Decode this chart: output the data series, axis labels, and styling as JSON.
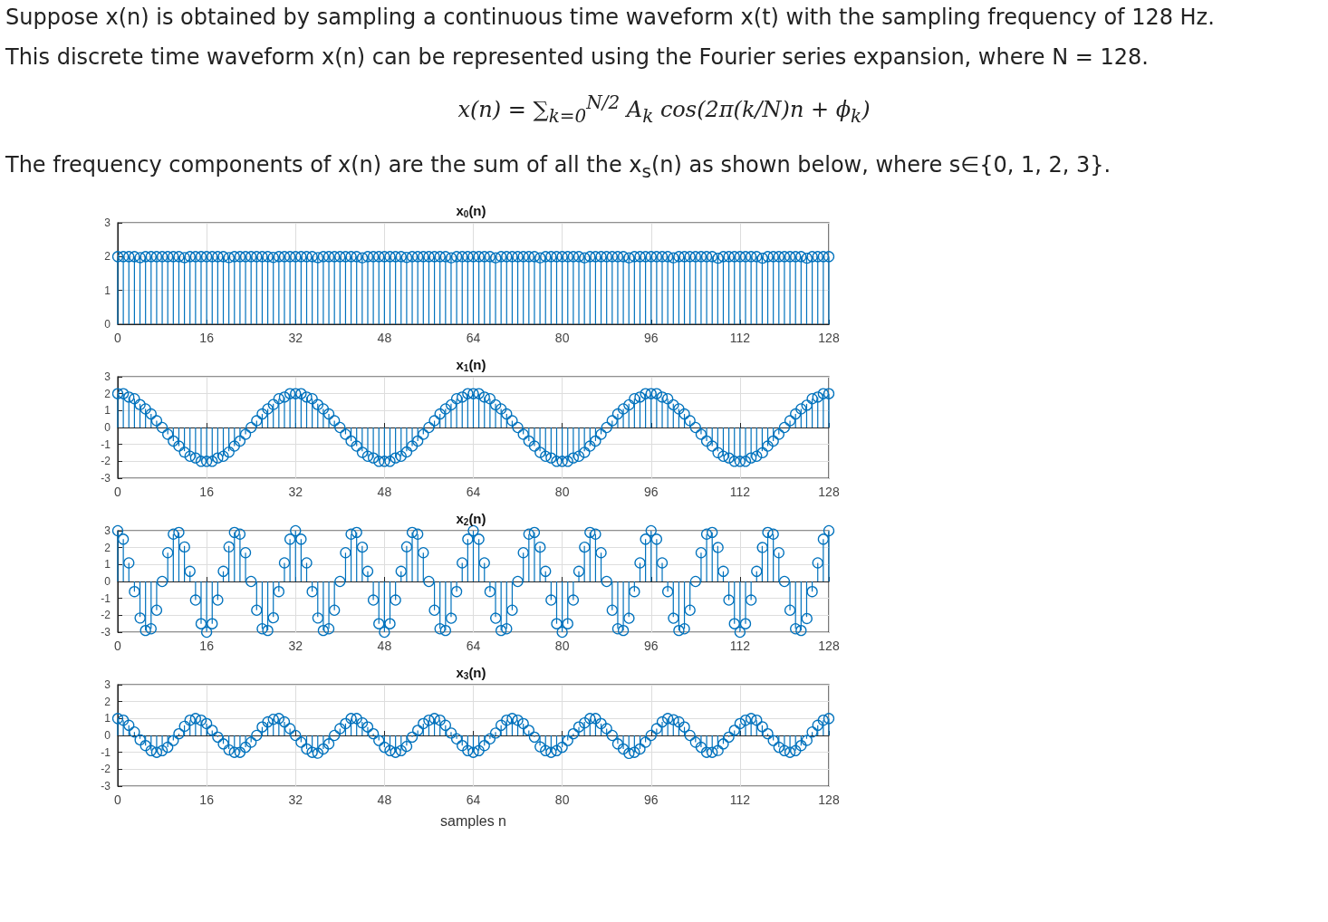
{
  "chart_data": [
    {
      "type": "lollipop",
      "title": "x$_{0}$(n)",
      "annotations": [
        "Suppose x(n) is obtained by sampling a continuous time waveform x(t) with the sampling frequency of 128 Hz.",
        "This discrete time waveform x(n) can be represented using the Fourier series expansion, where N = 128.",
        "x(n) = ∑$_{k=0}$$^{N/2}$ A$_{k}$ cos(2π(k/N)n + ϕ$_{k}$)",
        "The frequency components of x(n) are the sum of all the x$_{s}$(n) as shown below, where s∈{0, 1, 2, 3}."
      ],
      "color": "#0072bd",
      "marker": "circle",
      "grid": true,
      "xlim": [
        0,
        128
      ],
      "xticks": [
        0,
        16,
        32,
        48,
        64,
        80,
        96,
        112,
        128
      ],
      "ylim": [
        0,
        3
      ],
      "yticks": [
        0,
        1,
        2,
        3
      ],
      "x": [
        0,
        1,
        2,
        3,
        4,
        5,
        6,
        7,
        8,
        9,
        10,
        11,
        12,
        13,
        14,
        15,
        16,
        17,
        18,
        19,
        20,
        21,
        22,
        23,
        24,
        25,
        26,
        27,
        28,
        29,
        30,
        31,
        32,
        33,
        34,
        35,
        36,
        37,
        38,
        39,
        40,
        41,
        42,
        43,
        44,
        45,
        46,
        47,
        48,
        49,
        50,
        51,
        52,
        53,
        54,
        55,
        56,
        57,
        58,
        59,
        60,
        61,
        62,
        63,
        64,
        65,
        66,
        67,
        68,
        69,
        70,
        71,
        72,
        73,
        74,
        75,
        76,
        77,
        78,
        79,
        80,
        81,
        82,
        83,
        84,
        85,
        86,
        87,
        88,
        89,
        90,
        91,
        92,
        93,
        94,
        95,
        96,
        97,
        98,
        99,
        100,
        101,
        102,
        103,
        104,
        105,
        106,
        107,
        108,
        109,
        110,
        111,
        112,
        113,
        114,
        115,
        116,
        117,
        118,
        119,
        120,
        121,
        122,
        123,
        124,
        125,
        126,
        127,
        128
      ],
      "values": [
        2,
        2,
        2,
        2,
        2,
        2,
        2,
        2,
        2,
        2,
        2,
        2,
        2,
        2,
        2,
        2,
        2,
        2,
        2,
        2,
        2,
        2,
        2,
        2,
        2,
        2,
        2,
        2,
        2,
        2,
        2,
        2,
        2,
        2,
        2,
        2,
        2,
        2,
        2,
        2,
        2,
        2,
        2,
        2,
        2,
        2,
        2,
        2,
        2,
        2,
        2,
        2,
        2,
        2,
        2,
        2,
        2,
        2,
        2,
        2,
        2,
        2,
        2,
        2,
        2,
        2,
        2,
        2,
        2,
        2,
        2,
        2,
        2,
        2,
        2,
        2,
        2,
        2,
        2,
        2,
        2,
        2,
        2,
        2,
        2,
        2,
        2,
        2,
        2,
        2,
        2,
        2,
        2,
        2,
        2,
        2,
        2,
        2,
        2,
        2,
        2,
        2,
        2,
        2,
        2,
        2,
        2,
        2,
        2,
        2,
        2,
        2,
        2,
        2,
        2,
        2,
        2,
        2,
        2,
        2,
        2,
        2,
        2,
        2,
        2,
        2,
        2,
        2,
        2
      ]
    },
    {
      "type": "lollipop",
      "title": "x$_{1}$(n)",
      "color": "#0072bd",
      "marker": "circle",
      "grid": true,
      "xlim": [
        0,
        128
      ],
      "xticks": [
        0,
        16,
        32,
        48,
        64,
        80,
        96,
        112,
        128
      ],
      "ylim": [
        -3,
        3
      ],
      "yticks": [
        -3,
        -2,
        -1,
        0,
        1,
        2,
        3
      ],
      "x": [
        0,
        1,
        2,
        3,
        4,
        5,
        6,
        7,
        8,
        9,
        10,
        11,
        12,
        13,
        14,
        15,
        16,
        17,
        18,
        19,
        20,
        21,
        22,
        23,
        24,
        25,
        26,
        27,
        28,
        29,
        30,
        31,
        32,
        33,
        34,
        35,
        36,
        37,
        38,
        39,
        40,
        41,
        42,
        43,
        44,
        45,
        46,
        47,
        48,
        49,
        50,
        51,
        52,
        53,
        54,
        55,
        56,
        57,
        58,
        59,
        60,
        61,
        62,
        63,
        64,
        65,
        66,
        67,
        68,
        69,
        70,
        71,
        72,
        73,
        74,
        75,
        76,
        77,
        78,
        79,
        80,
        81,
        82,
        83,
        84,
        85,
        86,
        87,
        88,
        89,
        90,
        91,
        92,
        93,
        94,
        95,
        96,
        97,
        98,
        99,
        100,
        101,
        102,
        103,
        104,
        105,
        106,
        107,
        108,
        109,
        110,
        111,
        112,
        113,
        114,
        115,
        116,
        117,
        118,
        119,
        120,
        121,
        122,
        123,
        124,
        125,
        126,
        127,
        128
      ],
      "values": [
        2,
        2,
        1.8,
        1.7,
        1.4,
        1.1,
        0.8,
        0.4,
        0,
        -0.4,
        -0.8,
        -1.1,
        -1.4,
        -1.7,
        -1.8,
        -2,
        -2,
        -2,
        -1.8,
        -1.7,
        -1.4,
        -1.1,
        -0.8,
        -0.4,
        0,
        0.4,
        0.8,
        1.1,
        1.4,
        1.7,
        1.8,
        2,
        2,
        2,
        1.8,
        1.7,
        1.4,
        1.1,
        0.8,
        0.4,
        0,
        -0.4,
        -0.8,
        -1.1,
        -1.4,
        -1.7,
        -1.8,
        -2,
        -2,
        -2,
        -1.8,
        -1.7,
        -1.4,
        -1.1,
        -0.8,
        -0.4,
        0,
        0.4,
        0.8,
        1.1,
        1.4,
        1.7,
        1.8,
        2,
        2,
        2,
        1.8,
        1.7,
        1.4,
        1.1,
        0.8,
        0.4,
        0,
        -0.4,
        -0.8,
        -1.1,
        -1.4,
        -1.7,
        -1.8,
        -2,
        -2,
        -2,
        -1.8,
        -1.7,
        -1.4,
        -1.1,
        -0.8,
        -0.4,
        0,
        0.4,
        0.8,
        1.1,
        1.4,
        1.7,
        1.8,
        2,
        2,
        2,
        1.8,
        1.7,
        1.4,
        1.1,
        0.8,
        0.4,
        0,
        -0.4,
        -0.8,
        -1.1,
        -1.4,
        -1.7,
        -1.8,
        -2,
        -2,
        -2,
        -1.8,
        -1.7,
        -1.4,
        -1.1,
        -0.8,
        -0.4,
        0,
        0.4,
        0.8,
        1.1,
        1.4,
        1.7,
        1.8,
        2,
        2
      ]
    },
    {
      "type": "lollipop",
      "title": "x$_{2}$(n)",
      "color": "#0072bd",
      "marker": "circle",
      "grid": true,
      "xlim": [
        0,
        128
      ],
      "xticks": [
        0,
        16,
        32,
        48,
        64,
        80,
        96,
        112,
        128
      ],
      "ylim": [
        -3,
        3
      ],
      "yticks": [
        -3,
        -2,
        -1,
        0,
        1,
        2,
        3
      ],
      "x": [
        0,
        1,
        2,
        3,
        4,
        5,
        6,
        7,
        8,
        9,
        10,
        11,
        12,
        13,
        14,
        15,
        16,
        17,
        18,
        19,
        20,
        21,
        22,
        23,
        24,
        25,
        26,
        27,
        28,
        29,
        30,
        31,
        32,
        33,
        34,
        35,
        36,
        37,
        38,
        39,
        40,
        41,
        42,
        43,
        44,
        45,
        46,
        47,
        48,
        49,
        50,
        51,
        52,
        53,
        54,
        55,
        56,
        57,
        58,
        59,
        60,
        61,
        62,
        63,
        64,
        65,
        66,
        67,
        68,
        69,
        70,
        71,
        72,
        73,
        74,
        75,
        76,
        77,
        78,
        79,
        80,
        81,
        82,
        83,
        84,
        85,
        86,
        87,
        88,
        89,
        90,
        91,
        92,
        93,
        94,
        95,
        96,
        97,
        98,
        99,
        100,
        101,
        102,
        103,
        104,
        105,
        106,
        107,
        108,
        109,
        110,
        111,
        112,
        113,
        114,
        115,
        116,
        117,
        118,
        119,
        120,
        121,
        122,
        123,
        124,
        125,
        126,
        127,
        128
      ],
      "values": [
        3,
        2.5,
        1.1,
        -0.6,
        -2.1,
        -2.9,
        -2.8,
        -1.7,
        0,
        1.7,
        2.8,
        2.9,
        2.1,
        0.6,
        -1.1,
        -2.5,
        -3,
        -2.5,
        -1.1,
        0.6,
        2.1,
        2.9,
        2.8,
        1.7,
        0,
        -1.7,
        -2.8,
        -2.9,
        -2.1,
        -0.6,
        1.1,
        2.5,
        3,
        2.5,
        1.1,
        -0.6,
        -2.1,
        -2.9,
        -2.8,
        -1.7,
        0,
        1.7,
        2.8,
        2.9,
        2.1,
        0.6,
        -1.1,
        -2.5,
        -3,
        -2.5,
        -1.1,
        0.6,
        2.1,
        2.9,
        2.8,
        1.7,
        0,
        -1.7,
        -2.8,
        -2.9,
        -2.1,
        -0.6,
        1.1,
        2.5,
        3,
        2.5,
        1.1,
        -0.6,
        -2.1,
        -2.9,
        -2.8,
        -1.7,
        0,
        1.7,
        2.8,
        2.9,
        2.1,
        0.6,
        -1.1,
        -2.5,
        -3,
        -2.5,
        -1.1,
        0.6,
        2.1,
        2.9,
        2.8,
        1.7,
        0,
        -1.7,
        -2.8,
        -2.9,
        -2.1,
        -0.6,
        1.1,
        2.5,
        3,
        2.5,
        1.1,
        -0.6,
        -2.1,
        -2.9,
        -2.8,
        -1.7,
        0,
        1.7,
        2.8,
        2.9,
        2.1,
        0.6,
        -1.1,
        -2.5,
        -3,
        -2.5,
        -1.1,
        0.6,
        2.1,
        2.9,
        2.8,
        1.7,
        0,
        -1.7,
        -2.8,
        -2.9,
        -2.1,
        -0.6,
        1.1,
        2.5,
        3
      ]
    },
    {
      "type": "lollipop",
      "title": "x$_{3}$(n)",
      "xlabel": "samples n",
      "color": "#0072bd",
      "marker": "circle",
      "grid": true,
      "xlim": [
        0,
        128
      ],
      "xticks": [
        0,
        16,
        32,
        48,
        64,
        80,
        96,
        112,
        128
      ],
      "ylim": [
        -3,
        3
      ],
      "yticks": [
        -3,
        -2,
        -1,
        0,
        1,
        2,
        3
      ],
      "x": [
        0,
        1,
        2,
        3,
        4,
        5,
        6,
        7,
        8,
        9,
        10,
        11,
        12,
        13,
        14,
        15,
        16,
        17,
        18,
        19,
        20,
        21,
        22,
        23,
        24,
        25,
        26,
        27,
        28,
        29,
        30,
        31,
        32,
        33,
        34,
        35,
        36,
        37,
        38,
        39,
        40,
        41,
        42,
        43,
        44,
        45,
        46,
        47,
        48,
        49,
        50,
        51,
        52,
        53,
        54,
        55,
        56,
        57,
        58,
        59,
        60,
        61,
        62,
        63,
        64,
        65,
        66,
        67,
        68,
        69,
        70,
        71,
        72,
        73,
        74,
        75,
        76,
        77,
        78,
        79,
        80,
        81,
        82,
        83,
        84,
        85,
        86,
        87,
        88,
        89,
        90,
        91,
        92,
        93,
        94,
        95,
        96,
        97,
        98,
        99,
        100,
        101,
        102,
        103,
        104,
        105,
        106,
        107,
        108,
        109,
        110,
        111,
        112,
        113,
        114,
        115,
        116,
        117,
        118,
        119,
        120,
        121,
        122,
        123,
        124,
        125,
        126,
        127,
        128
      ],
      "values": [
        1,
        0.9,
        0.6,
        0.2,
        -0.2,
        -0.6,
        -0.9,
        -1,
        -0.9,
        -0.7,
        -0.3,
        0.1,
        0.6,
        0.9,
        1,
        0.9,
        0.7,
        0.3,
        -0.1,
        -0.5,
        -0.8,
        -1,
        -1,
        -0.7,
        -0.4,
        0,
        0.5,
        0.8,
        1,
        1,
        0.8,
        0.4,
        0,
        -0.4,
        -0.8,
        -1,
        -1,
        -0.8,
        -0.5,
        0,
        0.4,
        0.7,
        1,
        1,
        0.8,
        0.5,
        0.1,
        -0.3,
        -0.7,
        -0.9,
        -1,
        -0.9,
        -0.6,
        -0.1,
        0.3,
        0.7,
        0.9,
        1,
        0.9,
        0.6,
        0.2,
        -0.2,
        -0.6,
        -0.9,
        -1,
        -0.9,
        -0.6,
        -0.2,
        0.2,
        0.6,
        0.9,
        1,
        0.9,
        0.7,
        0.3,
        -0.1,
        -0.6,
        -0.9,
        -1,
        -0.9,
        -0.7,
        -0.3,
        0.1,
        0.5,
        0.8,
        1,
        1,
        0.7,
        0.4,
        0,
        -0.5,
        -0.8,
        -1,
        -1,
        -0.8,
        -0.4,
        0,
        0.4,
        0.8,
        1,
        1,
        0.8,
        0.5,
        0,
        -0.4,
        -0.7,
        -1,
        -1,
        -0.8,
        -0.5,
        -0.1,
        0.3,
        0.7,
        0.9,
        1,
        0.9,
        0.6,
        0.1,
        -0.3,
        -0.7,
        -0.9,
        -1,
        -0.9,
        -0.6,
        -0.2,
        0.2,
        0.6,
        0.9,
        1
      ]
    }
  ]
}
